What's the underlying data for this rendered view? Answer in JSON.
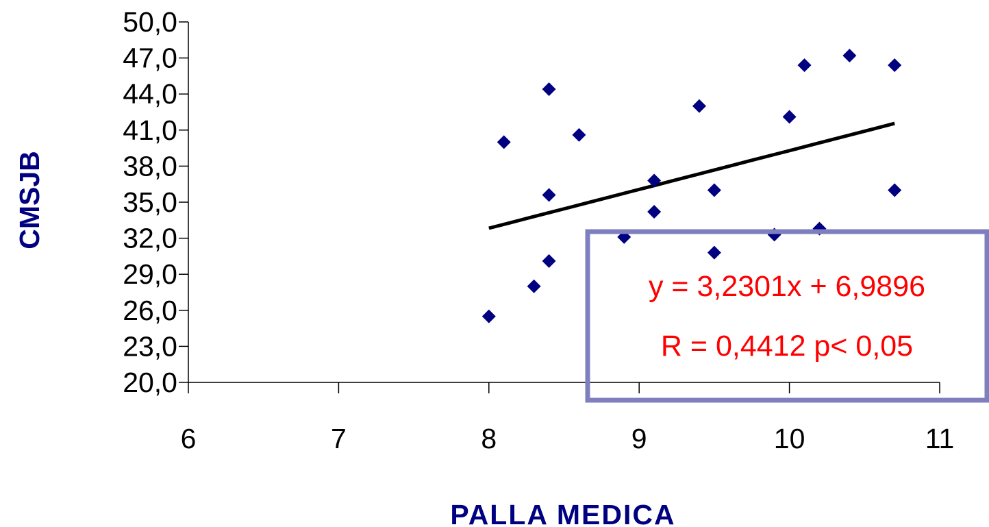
{
  "chart_data": {
    "type": "scatter",
    "title": "",
    "xlabel": "PALLA MEDICA",
    "ylabel": "CMSJB",
    "xlim": [
      6,
      11
    ],
    "ylim": [
      20,
      50
    ],
    "x_ticks": [
      6,
      7,
      8,
      9,
      10,
      11
    ],
    "x_tick_labels": [
      "6",
      "7",
      "8",
      "9",
      "10",
      "11"
    ],
    "y_ticks": [
      20,
      23,
      26,
      29,
      32,
      35,
      38,
      41,
      44,
      47,
      50
    ],
    "y_tick_labels": [
      "20,0",
      "23,0",
      "26,0",
      "29,0",
      "32,0",
      "35,0",
      "38,0",
      "41,0",
      "44,0",
      "47,0",
      "50,0"
    ],
    "series": [
      {
        "marker": "diamond",
        "color": "#000080",
        "points": [
          {
            "x": 8.0,
            "y": 25.5
          },
          {
            "x": 8.1,
            "y": 40.0
          },
          {
            "x": 8.3,
            "y": 28.0
          },
          {
            "x": 8.4,
            "y": 44.4
          },
          {
            "x": 8.4,
            "y": 35.6
          },
          {
            "x": 8.4,
            "y": 30.1
          },
          {
            "x": 8.6,
            "y": 40.6
          },
          {
            "x": 8.9,
            "y": 32.1
          },
          {
            "x": 9.1,
            "y": 36.8
          },
          {
            "x": 9.1,
            "y": 34.2
          },
          {
            "x": 9.4,
            "y": 43.0
          },
          {
            "x": 9.5,
            "y": 36.0
          },
          {
            "x": 9.5,
            "y": 30.8
          },
          {
            "x": 9.9,
            "y": 32.3
          },
          {
            "x": 10.0,
            "y": 42.1
          },
          {
            "x": 10.1,
            "y": 46.4
          },
          {
            "x": 10.2,
            "y": 32.8
          },
          {
            "x": 10.4,
            "y": 47.2
          },
          {
            "x": 10.7,
            "y": 46.4
          },
          {
            "x": 10.7,
            "y": 36.0
          }
        ]
      }
    ],
    "trendline": {
      "type": "linear",
      "x_range": [
        8.0,
        10.7
      ],
      "slope": 3.2301,
      "intercept": 6.9896,
      "color": "#000000"
    },
    "annotation": {
      "equation": "y = 3,2301x + 6,9896",
      "stats": "R = 0,4412 p< 0,05",
      "text_color": "#ff0000",
      "border_color": "#7f7fbf"
    },
    "grid": false,
    "legend": "none"
  }
}
